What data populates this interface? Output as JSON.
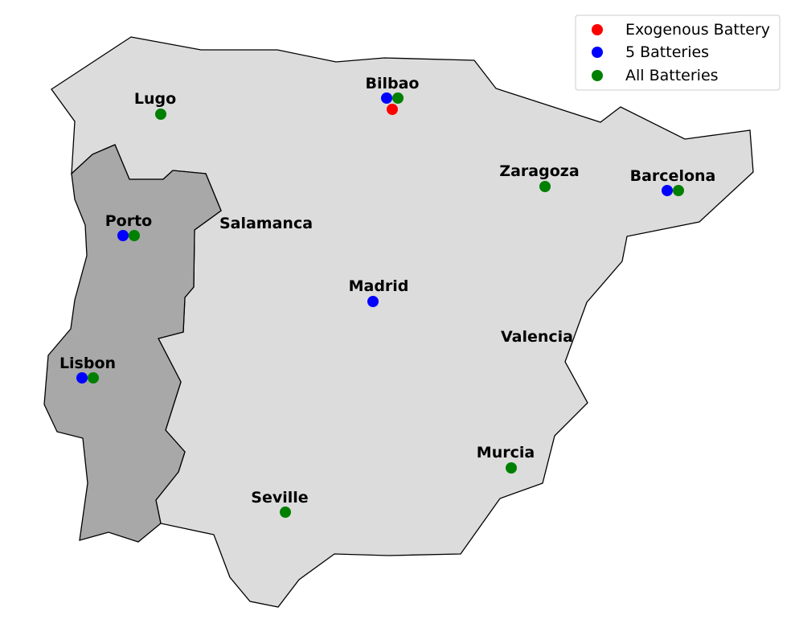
{
  "map": {
    "regions": [
      {
        "id": "spain",
        "name": "Spain"
      },
      {
        "id": "portugal",
        "name": "Portugal"
      }
    ],
    "cities": [
      {
        "id": "lugo",
        "label": "Lugo",
        "markers": [
          "all"
        ]
      },
      {
        "id": "bilbao",
        "label": "Bilbao",
        "markers": [
          "five",
          "all",
          "exogenous"
        ]
      },
      {
        "id": "zaragoza",
        "label": "Zaragoza",
        "markers": [
          "all"
        ]
      },
      {
        "id": "barcelona",
        "label": "Barcelona",
        "markers": [
          "five",
          "all"
        ]
      },
      {
        "id": "porto",
        "label": "Porto",
        "markers": [
          "five",
          "all"
        ]
      },
      {
        "id": "salamanca",
        "label": "Salamanca",
        "markers": []
      },
      {
        "id": "madrid",
        "label": "Madrid",
        "markers": [
          "five"
        ]
      },
      {
        "id": "valencia",
        "label": "Valencia",
        "markers": []
      },
      {
        "id": "lisbon",
        "label": "Lisbon",
        "markers": [
          "five",
          "all"
        ]
      },
      {
        "id": "murcia",
        "label": "Murcia",
        "markers": [
          "all"
        ]
      },
      {
        "id": "seville",
        "label": "Seville",
        "markers": [
          "all"
        ]
      }
    ]
  },
  "legend": {
    "placement": "top-right",
    "entries": [
      {
        "key": "exogenous",
        "label": "Exogenous Battery",
        "color": "#ff0000"
      },
      {
        "key": "five",
        "label": "5 Batteries",
        "color": "#0000ff"
      },
      {
        "key": "all",
        "label": "All Batteries",
        "color": "#008000"
      }
    ]
  }
}
